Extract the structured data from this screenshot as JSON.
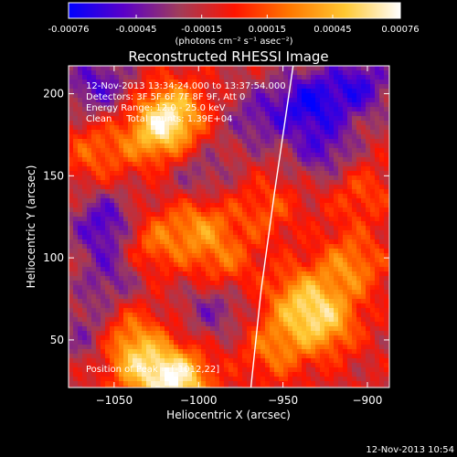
{
  "chart_data": {
    "type": "heatmap",
    "title": "Reconstructed RHESSI Image",
    "xlabel": "Heliocentric X (arcsec)",
    "ylabel": "Heliocentric Y (arcsec)",
    "xlim": [
      -1077,
      -887
    ],
    "ylim": [
      21,
      217
    ],
    "x_ticks": [
      -1050,
      -1000,
      -950,
      -900
    ],
    "y_ticks": [
      50,
      100,
      150,
      200
    ],
    "colorbar": {
      "range": [
        -0.00076,
        0.00076
      ],
      "tick_values": [
        -0.00076,
        -0.00045,
        -0.00015,
        0.00015,
        0.00045,
        0.00076
      ],
      "tick_labels": [
        "-0.00076",
        "-0.00045",
        "-0.00015",
        "0.00015",
        "0.00045",
        "0.00076"
      ],
      "units": "(photons cm⁻² s⁻¹ asec⁻²)",
      "colors": [
        "#0000ff",
        "#5a00c8",
        "#a03c5a",
        "#ff1400",
        "#ff7800",
        "#ffc832",
        "#ffffff"
      ]
    },
    "annotations": {
      "time_range": "12-Nov-2013 13:34:24.000 to 13:37:54.000",
      "detectors": "Detectors: 3F 5F 6F 7F 8F 9F, Att 0",
      "energy": "Energy Range: 12.0 - 25.0 keV",
      "clean": "Clean     Total counts: 1.39E+04",
      "peak": "Position of Peak = [-1012,22]"
    },
    "limb_curve": [
      [
        -969,
        21
      ],
      [
        -963,
        80
      ],
      [
        -955,
        140
      ],
      [
        -944,
        217
      ]
    ],
    "peak_position": [
      -1012,
      22
    ],
    "hotspots": [
      {
        "x": -1013,
        "y": 25,
        "intensity": 0.00076
      },
      {
        "x": -1015,
        "y": 188,
        "intensity": 0.00055
      },
      {
        "x": -1025,
        "y": 175,
        "intensity": 0.00045
      },
      {
        "x": -1000,
        "y": 120,
        "intensity": 0.0004
      },
      {
        "x": -1030,
        "y": 108,
        "intensity": 0.00035
      },
      {
        "x": -1045,
        "y": 55,
        "intensity": 0.0004
      },
      {
        "x": -1035,
        "y": 35,
        "intensity": 0.00045
      },
      {
        "x": -940,
        "y": 75,
        "intensity": 0.00045
      },
      {
        "x": -925,
        "y": 60,
        "intensity": 0.0005
      },
      {
        "x": -910,
        "y": 95,
        "intensity": 0.0004
      },
      {
        "x": -955,
        "y": 45,
        "intensity": 0.00035
      },
      {
        "x": -985,
        "y": 95,
        "intensity": 0.0003
      },
      {
        "x": -960,
        "y": 130,
        "intensity": 0.00025
      },
      {
        "x": -1060,
        "y": 165,
        "intensity": 0.0003
      },
      {
        "x": -905,
        "y": 140,
        "intensity": 0.00025
      }
    ],
    "coldspots": [
      {
        "x": -1060,
        "y": 205,
        "intensity": -0.0004
      },
      {
        "x": -1055,
        "y": 120,
        "intensity": -0.00045
      },
      {
        "x": -1062,
        "y": 55,
        "intensity": -0.00035
      },
      {
        "x": -935,
        "y": 195,
        "intensity": -0.0005
      },
      {
        "x": -905,
        "y": 205,
        "intensity": -0.00045
      },
      {
        "x": -925,
        "y": 165,
        "intensity": -0.00035
      },
      {
        "x": -965,
        "y": 185,
        "intensity": -0.0003
      },
      {
        "x": -1000,
        "y": 150,
        "intensity": -0.00025
      },
      {
        "x": -990,
        "y": 70,
        "intensity": -0.0003
      },
      {
        "x": -1050,
        "y": 88,
        "intensity": -0.0003
      }
    ]
  },
  "footer": {
    "timestamp": "12-Nov-2013 10:54"
  }
}
